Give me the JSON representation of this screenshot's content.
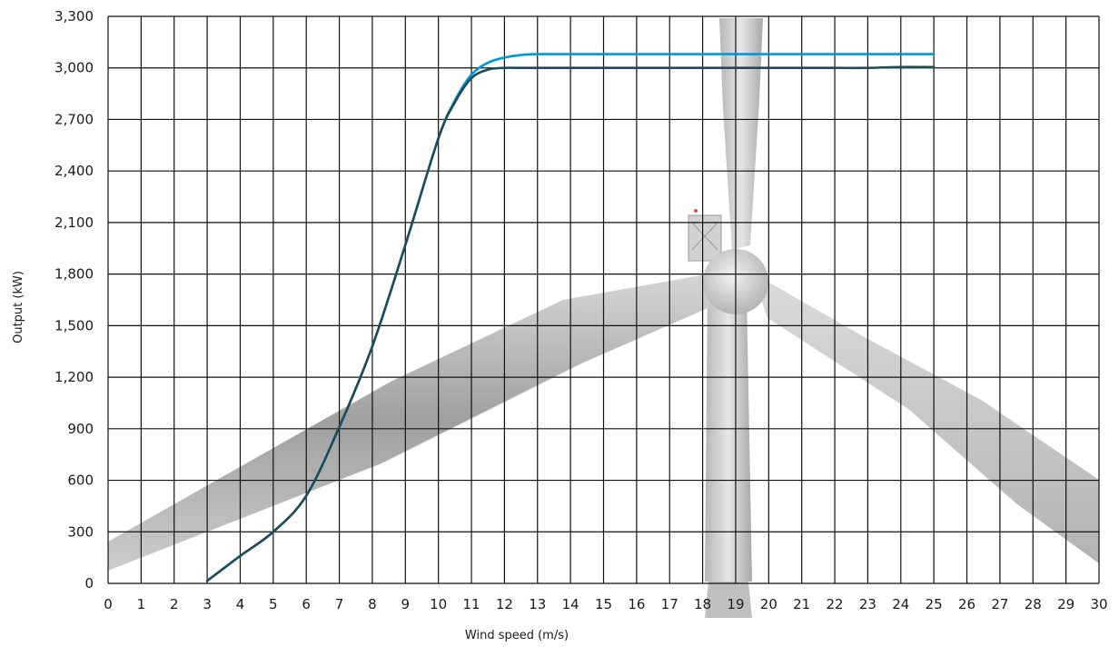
{
  "chart_data": {
    "type": "line",
    "xlabel": "Wind speed (m/s)",
    "ylabel": "Output (kW)",
    "xlim": [
      0,
      30
    ],
    "ylim": [
      0,
      3300
    ],
    "x_ticks": [
      "0",
      "1",
      "2",
      "3",
      "4",
      "5",
      "6",
      "7",
      "8",
      "9",
      "10",
      "11",
      "12",
      "13",
      "14",
      "15",
      "16",
      "17",
      "18",
      "19",
      "20",
      "21",
      "22",
      "23",
      "24",
      "25",
      "26",
      "27",
      "28",
      "29",
      "30"
    ],
    "y_ticks": [
      "0",
      "300",
      "600",
      "900",
      "1,200",
      "1,500",
      "1,800",
      "2,100",
      "2,400",
      "2,700",
      "3,000",
      "3,300"
    ],
    "grid": true,
    "legend": "none",
    "background_image": "wind-turbine-rotor",
    "series": [
      {
        "color": "#0099d8",
        "x": [
          3,
          4,
          5,
          6,
          7,
          8,
          9,
          10,
          10.5,
          11,
          11.5,
          12,
          12.5,
          13,
          14,
          15,
          16,
          17,
          18,
          19,
          20,
          21,
          22,
          23,
          24,
          25
        ],
        "values": [
          15,
          160,
          300,
          510,
          910,
          1380,
          1970,
          2590,
          2810,
          2960,
          3030,
          3060,
          3075,
          3080,
          3080,
          3080,
          3080,
          3080,
          3080,
          3080,
          3080,
          3080,
          3080,
          3080,
          3080,
          3080
        ]
      },
      {
        "color": "#1e4a5c",
        "x": [
          3,
          4,
          5,
          6,
          7,
          8,
          9,
          10,
          10.5,
          11,
          11.5,
          12,
          12.5,
          13,
          14,
          15,
          16,
          17,
          18,
          19,
          20,
          21,
          22,
          23,
          24,
          25
        ],
        "values": [
          15,
          160,
          300,
          510,
          910,
          1380,
          1970,
          2590,
          2800,
          2940,
          2990,
          3000,
          3000,
          3000,
          3000,
          3000,
          3000,
          3000,
          3000,
          3000,
          3000,
          3000,
          3000,
          3000,
          3005,
          3005
        ]
      }
    ]
  }
}
